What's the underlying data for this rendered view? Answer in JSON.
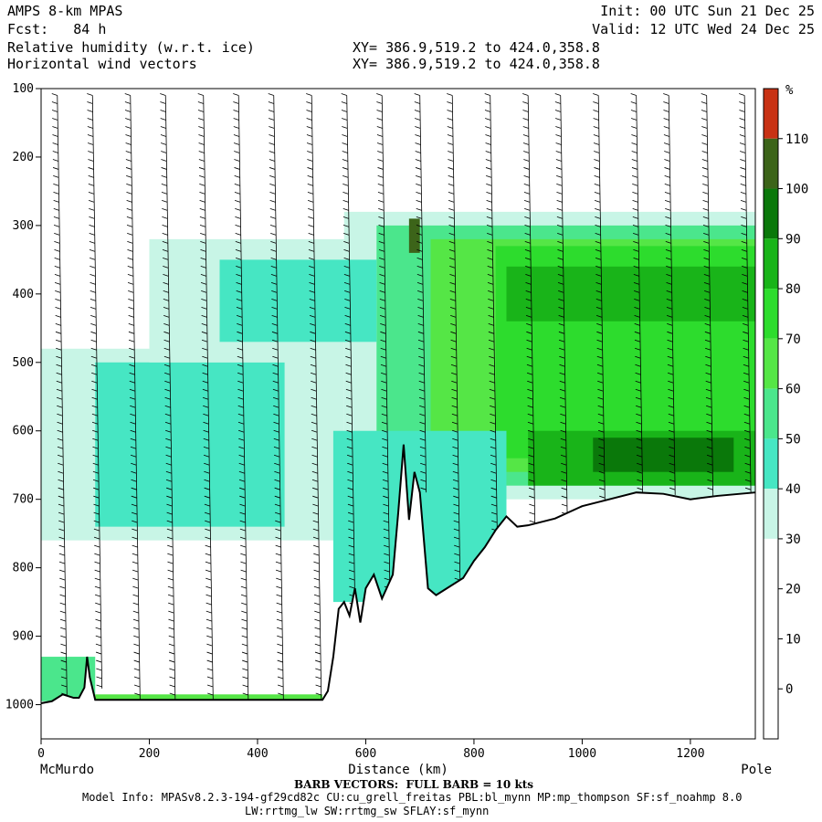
{
  "header": {
    "model": "AMPS 8-km MPAS",
    "fcst": "Fcst:   84 h",
    "field1": "Relative humidity (w.r.t. ice)",
    "field2": "Horizontal wind vectors",
    "xy1": "XY= 386.9,519.2 to 424.0,358.8",
    "xy2": "XY= 386.9,519.2 to 424.0,358.8",
    "init": "Init: 00 UTC Sun 21 Dec 25",
    "valid": "Valid: 12 UTC Wed 24 Dec 25"
  },
  "footer": {
    "barb_note": "BARB VECTORS:  FULL BARB = 10 kts",
    "model_info": "Model Info: MPASv8.2.3-194-gf29cd82c CU:cu_grell_freitas PBL:bl_mynn MP:mp_thompson SF:sf_noahmp 8.0",
    "model_info2": "LW:rrtmg_lw SW:rrtmg_sw SFLAY:sf_mynn"
  },
  "chart_data": {
    "type": "heatmap",
    "title": "Relative humidity (w.r.t. ice)",
    "xlabel": "Distance (km)",
    "ylabel": "",
    "x_start_label": "McMurdo",
    "x_end_label": "Pole",
    "xlim": [
      0,
      1320
    ],
    "ylim": [
      1050,
      100
    ],
    "x_ticks": [
      0,
      200,
      400,
      600,
      800,
      1000,
      1200
    ],
    "y_ticks": [
      100,
      200,
      300,
      400,
      500,
      600,
      700,
      800,
      900,
      1000
    ],
    "colorbar": {
      "unit": "%",
      "levels": [
        0,
        10,
        20,
        30,
        40,
        50,
        60,
        70,
        80,
        90,
        100,
        110
      ],
      "colors": [
        "#ffffff",
        "#ffffff",
        "#ffffff",
        "#c8f5e6",
        "#46e6c3",
        "#4be68c",
        "#55e646",
        "#2ddc2d",
        "#19b419",
        "#0a780a",
        "#3c6419",
        "#c83214"
      ]
    },
    "terrain": [
      [
        0,
        998
      ],
      [
        20,
        995
      ],
      [
        40,
        985
      ],
      [
        60,
        990
      ],
      [
        70,
        990
      ],
      [
        80,
        975
      ],
      [
        85,
        930
      ],
      [
        90,
        960
      ],
      [
        100,
        993
      ],
      [
        200,
        993
      ],
      [
        300,
        993
      ],
      [
        400,
        993
      ],
      [
        500,
        993
      ],
      [
        520,
        993
      ],
      [
        530,
        980
      ],
      [
        540,
        930
      ],
      [
        550,
        860
      ],
      [
        560,
        850
      ],
      [
        570,
        870
      ],
      [
        580,
        830
      ],
      [
        590,
        880
      ],
      [
        600,
        830
      ],
      [
        615,
        810
      ],
      [
        630,
        845
      ],
      [
        650,
        810
      ],
      [
        660,
        720
      ],
      [
        670,
        620
      ],
      [
        680,
        730
      ],
      [
        690,
        660
      ],
      [
        700,
        690
      ],
      [
        715,
        830
      ],
      [
        730,
        840
      ],
      [
        750,
        830
      ],
      [
        780,
        815
      ],
      [
        800,
        790
      ],
      [
        820,
        770
      ],
      [
        840,
        745
      ],
      [
        860,
        725
      ],
      [
        880,
        740
      ],
      [
        900,
        738
      ],
      [
        950,
        728
      ],
      [
        1000,
        710
      ],
      [
        1050,
        700
      ],
      [
        1100,
        690
      ],
      [
        1150,
        692
      ],
      [
        1200,
        700
      ],
      [
        1250,
        695
      ],
      [
        1320,
        690
      ]
    ],
    "rh_regions": [
      {
        "x": [
          560,
          1320
        ],
        "p": [
          280,
          700
        ],
        "rh": 35
      },
      {
        "x": [
          620,
          1320
        ],
        "p": [
          300,
          680
        ],
        "rh": 50
      },
      {
        "x": [
          720,
          1320
        ],
        "p": [
          320,
          660
        ],
        "rh": 65
      },
      {
        "x": [
          840,
          1320
        ],
        "p": [
          330,
          640
        ],
        "rh": 75
      },
      {
        "x": [
          860,
          1320
        ],
        "p": [
          360,
          440
        ],
        "rh": 85
      },
      {
        "x": [
          900,
          1320
        ],
        "p": [
          600,
          680
        ],
        "rh": 85
      },
      {
        "x": [
          1020,
          1280
        ],
        "p": [
          610,
          660
        ],
        "rh": 95
      },
      {
        "x": [
          680,
          700
        ],
        "p": [
          290,
          340
        ],
        "rh": 105
      },
      {
        "x": [
          0,
          560
        ],
        "p": [
          480,
          760
        ],
        "rh": 35
      },
      {
        "x": [
          100,
          450
        ],
        "p": [
          500,
          740
        ],
        "rh": 45
      },
      {
        "x": [
          200,
          560
        ],
        "p": [
          320,
          500
        ],
        "rh": 38
      },
      {
        "x": [
          330,
          620
        ],
        "p": [
          350,
          470
        ],
        "rh": 45
      },
      {
        "x": [
          0,
          100
        ],
        "p": [
          930,
          995
        ],
        "rh": 55
      },
      {
        "x": [
          100,
          520
        ],
        "p": [
          985,
          995
        ],
        "rh": 65
      },
      {
        "x": [
          540,
          860
        ],
        "p": [
          600,
          850
        ],
        "rh": 45
      }
    ],
    "barb_columns_km": [
      30,
      95,
      165,
      230,
      300,
      365,
      430,
      500,
      565,
      630,
      700,
      760,
      830,
      900,
      960,
      1030,
      1100,
      1160,
      1230,
      1300
    ]
  }
}
